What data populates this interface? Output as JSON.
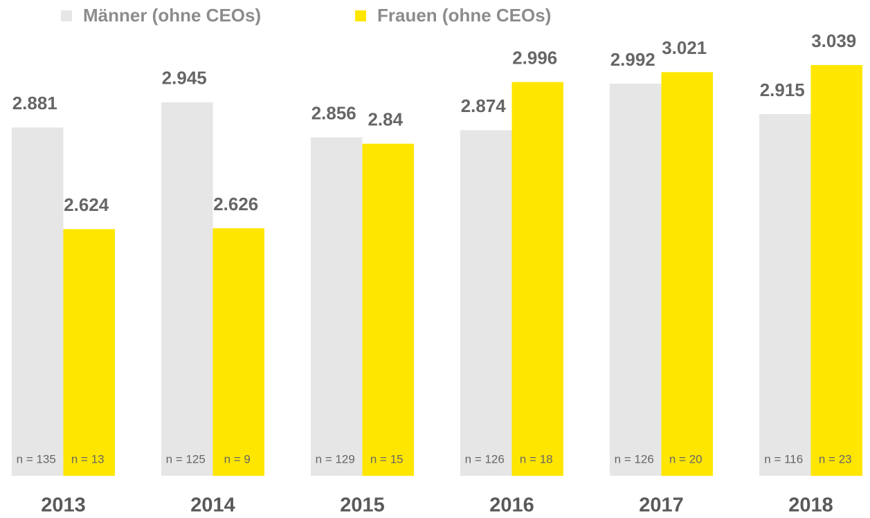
{
  "chart_data": {
    "type": "bar",
    "categories": [
      "2013",
      "2014",
      "2015",
      "2016",
      "2017",
      "2018"
    ],
    "series": [
      {
        "name": "Männer (ohne CEOs)",
        "color": "#e6e6e6",
        "values": [
          2.881,
          2.945,
          2.856,
          2.874,
          2.992,
          2.915
        ],
        "n_labels": [
          "n = 135",
          "n = 125",
          "n = 129",
          "n = 126",
          "n = 126",
          "n = 116"
        ]
      },
      {
        "name": "Frauen (ohne CEOs)",
        "color": "#ffe600",
        "values": [
          2.624,
          2.626,
          2.84,
          2.996,
          3.021,
          3.039
        ],
        "n_labels": [
          "n = 13",
          "n = 9",
          "n = 15",
          "n = 18",
          "n = 20",
          "n = 23"
        ]
      }
    ],
    "ylim": [
      2.0,
      3.2
    ]
  }
}
